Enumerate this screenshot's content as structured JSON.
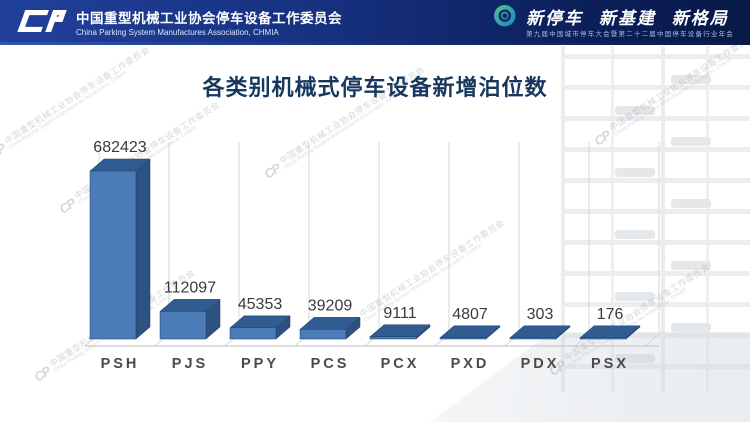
{
  "header": {
    "org_cn": "中国重型机械工业协会停车设备工作委员会",
    "org_en": "China Parking System Manufactures Association, CHMIA",
    "slogan": "新停车  新基建  新格局",
    "slogan_sub": "第九届中国城市停车大会暨第二十二届中国停车设备行业年会",
    "band_color_left": "#21409a",
    "band_color_right": "#081945",
    "p_logo_colors": [
      "#4cc38a",
      "#1f8ac4"
    ]
  },
  "title": "各类别机械式停车设备新增泊位数",
  "watermark": {
    "cn": "中国重型机械工业协会停车设备工作委员会",
    "en": "China Parking System Manufactures Association, CHMIA"
  },
  "chart_data": {
    "type": "bar",
    "variant": "3d-column",
    "title": "各类别机械式停车设备新增泊位数",
    "categories": [
      "PSH",
      "PJS",
      "PPY",
      "PCS",
      "PCX",
      "PXD",
      "PDX",
      "PSX"
    ],
    "values": [
      682423,
      112097,
      45353,
      39209,
      9111,
      4807,
      303,
      176
    ],
    "xlabel": "",
    "ylabel": "",
    "ylim": [
      0,
      700000
    ],
    "grid": "vertical category separators, no y-axis labels",
    "legend": "none",
    "data_labels": "above each bar",
    "colors": {
      "bar_front": "#4b7cb8",
      "bar_top": "#315c92",
      "bar_side": "#2d5180",
      "bar_edge": "#1e3e66",
      "value_label": "#3a3a3a",
      "category_label": "#4a4a4a",
      "gridline": "#d7d7d7",
      "baseline": "#c9c9c9",
      "title_color": "#17375e"
    }
  }
}
